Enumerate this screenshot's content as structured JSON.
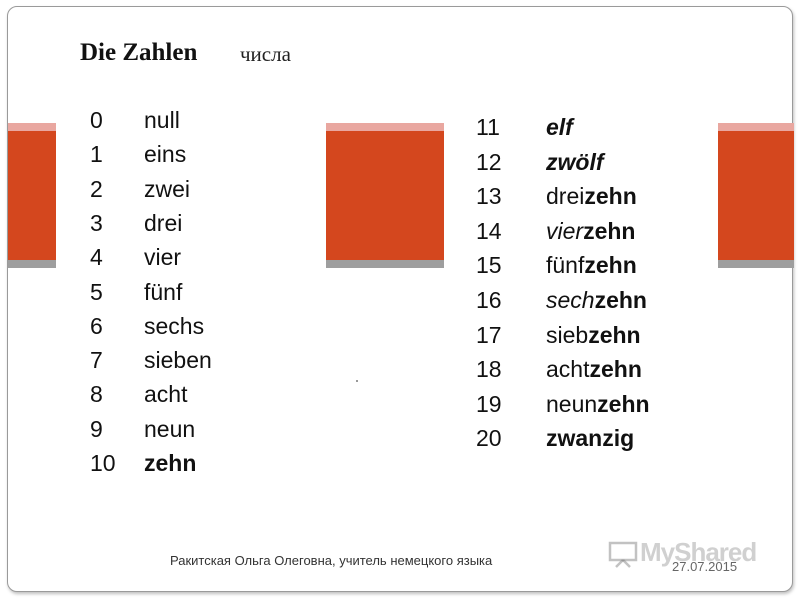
{
  "slide": {
    "title": "Die Zahlen",
    "subtitle": "числа",
    "footer": "Ракитская Ольга Олеговна, учитель немецкого языка",
    "date": "27.07.2015",
    "watermark": "MyShared"
  },
  "numbers_left": [
    {
      "num": "0",
      "word": "null"
    },
    {
      "num": "1",
      "word": "eins"
    },
    {
      "num": "2",
      "word": "zwei"
    },
    {
      "num": "3",
      "word": "drei"
    },
    {
      "num": "4",
      "word": "vier"
    },
    {
      "num": "5",
      "word": "fünf"
    },
    {
      "num": "6",
      "word": "sechs"
    },
    {
      "num": "7",
      "word": "sieben"
    },
    {
      "num": "8",
      "word": "acht"
    },
    {
      "num": "9",
      "word": "neun"
    },
    {
      "num": "10",
      "word": "zehn"
    }
  ],
  "numbers_right": [
    {
      "num": "11",
      "prefix": "elf",
      "suffix": ""
    },
    {
      "num": "12",
      "prefix": "zwölf",
      "suffix": ""
    },
    {
      "num": "13",
      "prefix": "drei",
      "suffix": "zehn"
    },
    {
      "num": "14",
      "prefix": "vier",
      "suffix": "zehn"
    },
    {
      "num": "15",
      "prefix": "fünf",
      "suffix": "zehn"
    },
    {
      "num": "16",
      "prefix": "sech",
      "suffix": "zehn"
    },
    {
      "num": "17",
      "prefix": "sieb",
      "suffix": "zehn"
    },
    {
      "num": "18",
      "prefix": "acht",
      "suffix": "zehn"
    },
    {
      "num": "19",
      "prefix": "neun",
      "suffix": "zehn"
    },
    {
      "num": "20",
      "prefix": "zwanzig",
      "suffix": ""
    }
  ],
  "colors": {
    "accent_band": "#d4471e",
    "light_band": "#e9a7a0",
    "grey_band": "#9e9e9e"
  }
}
